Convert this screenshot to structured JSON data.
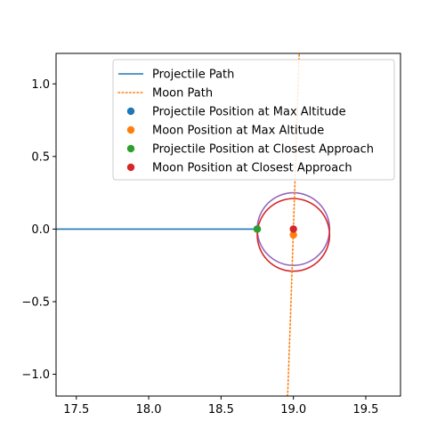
{
  "chart_data": {
    "type": "line",
    "title": "",
    "xlabel": "",
    "ylabel": "",
    "xlim": [
      17.36,
      19.74
    ],
    "ylim": [
      -1.15,
      1.21
    ],
    "xticks": [
      17.5,
      18.0,
      18.5,
      19.0,
      19.5
    ],
    "xtick_labels": [
      "17.5",
      "18.0",
      "18.5",
      "19.0",
      "19.5"
    ],
    "yticks": [
      -1.0,
      -0.5,
      0.0,
      0.5,
      1.0
    ],
    "ytick_labels": [
      "−1.0",
      "−0.5",
      "0.0",
      "0.5",
      "1.0"
    ],
    "grid": false,
    "legend_position": "top-right",
    "series": [
      {
        "name": "Projectile Path",
        "kind": "line",
        "style": "solid",
        "color": "#1f77b4",
        "x": [
          17.36,
          18.0,
          18.5,
          18.75
        ],
        "y": [
          0.0,
          0.0,
          0.0,
          0.0
        ]
      },
      {
        "name": "Moon Path",
        "kind": "line",
        "style": "dotted",
        "color": "#ff7f0e",
        "x": [
          18.96,
          18.98,
          19.0,
          19.02,
          19.04
        ],
        "y": [
          -1.15,
          -0.6,
          0.0,
          0.6,
          1.21
        ]
      },
      {
        "name": "Projectile Position at Max Altitude",
        "kind": "scatter",
        "color": "#1f77b4",
        "x": [
          18.75
        ],
        "y": [
          0.0
        ]
      },
      {
        "name": "Moon Position at Max Altitude",
        "kind": "scatter",
        "color": "#ff7f0e",
        "x": [
          19.0
        ],
        "y": [
          -0.04
        ]
      },
      {
        "name": "Projectile Position at Closest Approach",
        "kind": "scatter",
        "color": "#2ca02c",
        "x": [
          18.75
        ],
        "y": [
          0.0
        ]
      },
      {
        "name": "Moon Position at Closest Approach",
        "kind": "scatter",
        "color": "#d62728",
        "x": [
          19.0
        ],
        "y": [
          0.0
        ]
      }
    ],
    "circles": [
      {
        "cx": 19.0,
        "cy": 0.0,
        "r": 0.25,
        "color": "#9467bd"
      },
      {
        "cx": 19.0,
        "cy": -0.04,
        "r": 0.25,
        "color": "#d62728"
      }
    ]
  }
}
